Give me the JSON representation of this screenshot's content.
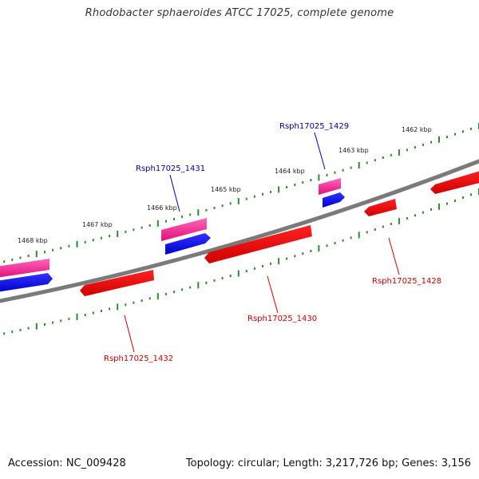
{
  "title": "Rhodobacter sphaeroides ATCC 17025, complete genome",
  "footer": {
    "accession": "Accession: NC_009428",
    "summary": "Topology: circular; Length: 3,217,726 bp; Genes: 3,156"
  },
  "colors": {
    "backbone": "#777777",
    "tick": "#2e8b2e",
    "forward_gene": "#ff3399",
    "forward_cds": "#0000ee",
    "reverse_gene": "#ee0000",
    "forward_label": "#0000aa",
    "reverse_label": "#cc0000"
  },
  "scale": {
    "unit": "kbp",
    "labels": [
      {
        "kbp": 1468,
        "text": "1468 kbp"
      },
      {
        "kbp": 1467,
        "text": "1467 kbp"
      },
      {
        "kbp": 1466,
        "text": "1466 kbp"
      },
      {
        "kbp": 1465,
        "text": "1465 kbp"
      },
      {
        "kbp": 1464,
        "text": "1464 kbp"
      },
      {
        "kbp": 1463,
        "text": "1463 kbp"
      },
      {
        "kbp": 1462,
        "text": "1462 kbp"
      }
    ]
  },
  "genes": [
    {
      "locus": "Rsph17025_1429",
      "strand": "+"
    },
    {
      "locus": "Rsph17025_1431",
      "strand": "+"
    },
    {
      "locus": "Rsph17025_1428",
      "strand": "-"
    },
    {
      "locus": "Rsph17025_1430",
      "strand": "-"
    },
    {
      "locus": "Rsph17025_1432",
      "strand": "-"
    }
  ]
}
